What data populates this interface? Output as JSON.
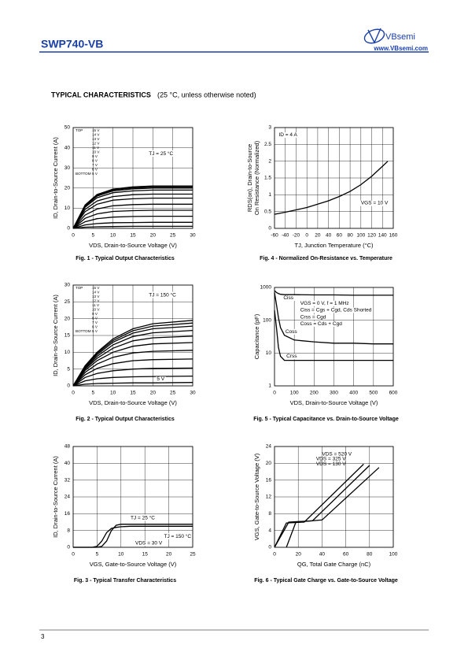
{
  "header": {
    "part_number": "SWP740-VB",
    "logo": "VBsemi",
    "website": "www.VBsemi.com"
  },
  "section": {
    "title": "TYPICAL CHARACTERISTICS",
    "note": "(25 °C, unless otherwise noted)"
  },
  "footer": {
    "page": "3"
  },
  "chart_data": [
    {
      "type": "line",
      "title": "Fig. 1 - Typical Output Characteristics",
      "x_label": "VDS, Drain-to-Source Voltage (V)",
      "y_label": "ID, Drain-to-Source Current (A)",
      "xlim": [
        0,
        30
      ],
      "ylim": [
        0,
        50
      ],
      "xticks": [
        0,
        5,
        10,
        15,
        20,
        25,
        30
      ],
      "yticks": [
        0,
        10,
        20,
        30,
        40,
        50
      ],
      "grid": true,
      "legend_top": "TOP",
      "legend_bottom": "BOTTOM",
      "x": [
        0,
        3,
        6,
        10,
        15,
        20,
        30
      ],
      "series": [
        {
          "name": "15 V",
          "color": "#000000",
          "values": [
            0,
            11.6,
            16.8,
            19.5,
            20.6,
            21,
            21
          ]
        },
        {
          "name": "14 V",
          "color": "#000000",
          "values": [
            0,
            11.3,
            16.4,
            19.1,
            20.1,
            20.5,
            20.5
          ]
        },
        {
          "name": "13 V",
          "color": "#000000",
          "values": [
            0,
            11,
            16,
            18.6,
            19.6,
            20,
            20
          ]
        },
        {
          "name": "12 V",
          "color": "#000000",
          "values": [
            0,
            10.5,
            15.2,
            17.7,
            18.6,
            19,
            19
          ]
        },
        {
          "name": "11 V",
          "color": "#000000",
          "values": [
            0,
            9.4,
            13.6,
            15.8,
            16.7,
            17,
            17
          ]
        },
        {
          "name": "10 V",
          "color": "#000000",
          "values": [
            0,
            8.3,
            12,
            14,
            14.7,
            15,
            15
          ]
        },
        {
          "name": "9 V",
          "color": "#000000",
          "values": [
            0,
            6.6,
            9.6,
            11.2,
            11.8,
            12,
            12
          ]
        },
        {
          "name": "8 V",
          "color": "#000000",
          "values": [
            0,
            5,
            7.2,
            8.4,
            8.8,
            9,
            9
          ]
        },
        {
          "name": "7 V",
          "color": "#000000",
          "values": [
            0,
            3.3,
            4.8,
            5.6,
            5.9,
            6,
            6
          ]
        },
        {
          "name": "6 V",
          "color": "#000000",
          "values": [
            0,
            1.7,
            2.4,
            2.8,
            2.9,
            3,
            3
          ]
        },
        {
          "name": "5 V",
          "color": "#000000",
          "values": [
            0,
            0.6,
            0.8,
            0.9,
            1,
            1,
            1
          ]
        }
      ],
      "annotations": [
        "TJ = 25 °C"
      ]
    },
    {
      "type": "line",
      "title": "Fig. 4 - Normalized On-Resistance vs. Temperature",
      "x_label": "TJ, Junction Temperature (°C)",
      "y_label": [
        "RDS(on), Drain-to-Source",
        "On Resistance (Normalized)"
      ],
      "xlim": [
        -60,
        160
      ],
      "ylim": [
        0,
        3
      ],
      "xticks": [
        -60,
        -40,
        -20,
        0,
        20,
        40,
        60,
        80,
        100,
        120,
        140,
        160
      ],
      "yticks": [
        0,
        0.5,
        1,
        1.5,
        2,
        2.5,
        3
      ],
      "grid": true,
      "x": [
        -60,
        -40,
        -20,
        0,
        20,
        40,
        60,
        80,
        100,
        120,
        140,
        150
      ],
      "series": [
        {
          "color": "#000000",
          "values": [
            0.42,
            0.48,
            0.55,
            0.62,
            0.72,
            0.82,
            0.95,
            1.1,
            1.3,
            1.55,
            1.85,
            2.0
          ]
        }
      ],
      "annotations": [
        "ID = 4 A",
        "VGS = 10 V"
      ]
    },
    {
      "type": "line",
      "title": "Fig. 2 - Typical Output Characteristics",
      "x_label": "VDS, Drain-to-Source Voltage (V)",
      "y_label": "ID, Drain-to-Source Current (A)",
      "xlim": [
        0,
        30
      ],
      "ylim": [
        0,
        30
      ],
      "xticks": [
        0,
        5,
        10,
        15,
        20,
        25,
        30
      ],
      "yticks": [
        0,
        5,
        10,
        15,
        20,
        25,
        30
      ],
      "grid": true,
      "legend_top": "TOP",
      "legend_bottom": "BOTTOM",
      "x": [
        0,
        3,
        6,
        10,
        15,
        20,
        30
      ],
      "series": [
        {
          "name": "15 V",
          "color": "#000000",
          "values": [
            0,
            6,
            10,
            14,
            17,
            18.5,
            19.5
          ]
        },
        {
          "name": "14 V",
          "color": "#000000",
          "values": [
            0,
            5.8,
            9.7,
            13.5,
            16.4,
            17.8,
            18.7
          ]
        },
        {
          "name": "13 V",
          "color": "#000000",
          "values": [
            0,
            5.6,
            9.3,
            13,
            15.7,
            17,
            17.8
          ]
        },
        {
          "name": "12 V",
          "color": "#000000",
          "values": [
            0,
            5.3,
            8.8,
            12.2,
            14.7,
            15.8,
            16.5
          ]
        },
        {
          "name": "11 V",
          "color": "#000000",
          "values": [
            0,
            5,
            8.2,
            11.2,
            13.4,
            14.3,
            14.8
          ]
        },
        {
          "name": "10 V",
          "color": "#000000",
          "values": [
            0,
            4.6,
            7.5,
            10,
            11.8,
            12.5,
            12.9
          ]
        },
        {
          "name": "9 V",
          "color": "#000000",
          "values": [
            0,
            4,
            6.5,
            8.5,
            9.8,
            10.3,
            10.6
          ]
        },
        {
          "name": "8 V",
          "color": "#000000",
          "values": [
            0,
            3.3,
            5.2,
            6.6,
            7.5,
            7.8,
            8
          ]
        },
        {
          "name": "7 V",
          "color": "#000000",
          "values": [
            0,
            2.5,
            3.7,
            4.5,
            5,
            5.2,
            5.3
          ]
        },
        {
          "name": "6 V",
          "color": "#000000",
          "values": [
            0,
            1.5,
            2.1,
            2.5,
            2.7,
            2.8,
            2.9
          ]
        },
        {
          "name": "5 V",
          "color": "#000000",
          "values": [
            0,
            0.5,
            0.7,
            0.8,
            0.9,
            0.9,
            1
          ]
        }
      ],
      "annotations": [
        "TJ = 150 °C",
        "5 V"
      ]
    },
    {
      "type": "line",
      "title": "Fig. 5 - Typical Capacitance vs. Drain-to-Source Voltage",
      "x_label": "VDS, Drain-to-Source Voltage (V)",
      "y_label": "Capacitance (pF)",
      "xlim": [
        0,
        600
      ],
      "ylim": [
        1,
        1000
      ],
      "log_y": true,
      "xticks": [
        0,
        100,
        200,
        300,
        400,
        500,
        600
      ],
      "yticks": [
        1,
        10,
        100,
        1000
      ],
      "grid": true,
      "x": [
        0,
        10,
        20,
        30,
        50,
        100,
        200,
        300,
        400,
        500,
        600
      ],
      "series": [
        {
          "color": "#000000",
          "values": [
            800,
            700,
            650,
            620,
            600,
            600,
            590,
            590,
            580,
            580,
            580
          ]
        },
        {
          "color": "#000000",
          "values": [
            700,
            300,
            120,
            60,
            35,
            25,
            22,
            20,
            20,
            19,
            19
          ]
        },
        {
          "color": "#000000",
          "values": [
            200,
            60,
            15,
            8,
            6,
            6,
            6,
            6,
            6,
            6,
            6
          ]
        }
      ],
      "annotations": [
        "Ciss",
        "VGS = 0 V, f = 1 MHz",
        "Ciss = Cgs + Cgd, Cds Shorted",
        "Crss = Cgd",
        "Coss = Cds + Cgd",
        "Coss",
        "Crss"
      ]
    },
    {
      "type": "line",
      "title": "Fig. 3 - Typical Transfer Characteristics",
      "x_label": "VGS, Gate-to-Source Voltage (V)",
      "y_label": "ID, Drain-to-Source Current (A)",
      "xlim": [
        0,
        25
      ],
      "ylim": [
        0,
        48
      ],
      "xticks": [
        0,
        5,
        10,
        15,
        20,
        25
      ],
      "yticks": [
        0,
        8,
        16,
        24,
        32,
        40,
        48
      ],
      "grid": true,
      "x": [
        0,
        2,
        4,
        5,
        6,
        7,
        8,
        9,
        10,
        12,
        25
      ],
      "series": [
        {
          "color": "#000000",
          "values": [
            0,
            0,
            0,
            0,
            0.5,
            3,
            8,
            10.5,
            11,
            11,
            11
          ]
        },
        {
          "color": "#000000",
          "values": [
            0,
            0,
            0,
            0.5,
            3,
            7,
            9,
            9.5,
            9.8,
            10,
            10
          ]
        }
      ],
      "annotations": [
        "TJ = 25 °C",
        "TJ = 150 °C",
        "VDS = 30 V"
      ]
    },
    {
      "type": "line",
      "title": "Fig. 6 - Typical Gate Charge vs. Gate-to-Source Voltage",
      "x_label": "QG, Total Gate Charge (nC)",
      "y_label": "VGS, Gate-to-Source Voltage (V)",
      "xlim": [
        0,
        100
      ],
      "ylim": [
        0,
        24
      ],
      "xticks": [
        0,
        20,
        40,
        60,
        80,
        100
      ],
      "yticks": [
        0,
        4,
        8,
        12,
        16,
        20,
        24
      ],
      "grid": true,
      "series": [
        {
          "name": "VDS = 520 V",
          "color": "#000000",
          "x": [
            10,
            18,
            40,
            88
          ],
          "values": [
            0,
            6,
            6.5,
            19
          ]
        },
        {
          "name": "VDS = 325 V",
          "color": "#000000",
          "x": [
            0,
            12,
            32,
            80
          ],
          "values": [
            0,
            6,
            6.3,
            19.5
          ]
        },
        {
          "name": "VDS = 130 V",
          "color": "#000000",
          "x": [
            0,
            10,
            25,
            75
          ],
          "values": [
            0,
            5.8,
            6,
            19.8
          ]
        }
      ]
    }
  ]
}
